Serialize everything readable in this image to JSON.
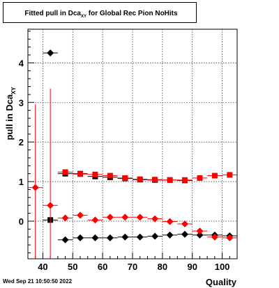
{
  "title": {
    "main": "Fitted pull in Dca",
    "sub": "XY",
    "rest": " for Global Rec Pion NoHits"
  },
  "timestamp": "Wed Sep 21 10:50:50 2022",
  "colors": {
    "black": "#000000",
    "red": "#ff0000"
  },
  "chart_data": {
    "type": "scatter",
    "xlabel": "Quality",
    "ylabel_main": "pull in Dca",
    "ylabel_sub": "XY",
    "xlim": [
      35,
      105
    ],
    "ylim": [
      -0.95,
      4.85
    ],
    "xticks": [
      40,
      50,
      60,
      70,
      80,
      90,
      100
    ],
    "yticks": [
      0,
      1,
      2,
      3,
      4
    ],
    "grid": true,
    "series": [
      {
        "color": "#000000",
        "marker": "diamond",
        "points": [
          {
            "x": 42.5,
            "y": 4.25,
            "xerr": 2.5
          },
          {
            "x": 47.5,
            "y": -0.47,
            "xerr": 2.5
          },
          {
            "x": 52.5,
            "y": -0.42,
            "xerr": 2.5
          },
          {
            "x": 57.5,
            "y": -0.42,
            "xerr": 2.5
          },
          {
            "x": 62.5,
            "y": -0.42,
            "xerr": 2.5
          },
          {
            "x": 67.5,
            "y": -0.4,
            "xerr": 2.5
          },
          {
            "x": 72.5,
            "y": -0.4,
            "xerr": 2.5
          },
          {
            "x": 77.5,
            "y": -0.38,
            "xerr": 2.5
          },
          {
            "x": 82.5,
            "y": -0.35,
            "xerr": 2.5
          },
          {
            "x": 87.5,
            "y": -0.33,
            "xerr": 2.5
          },
          {
            "x": 92.5,
            "y": -0.35,
            "xerr": 2.5
          },
          {
            "x": 97.5,
            "y": -0.35,
            "xerr": 2.5
          },
          {
            "x": 102.5,
            "y": -0.37,
            "xerr": 2.5
          }
        ]
      },
      {
        "color": "#000000",
        "marker": "square",
        "points": [
          {
            "x": 42.5,
            "y": 0.03,
            "xerr": 2.5
          },
          {
            "x": 47.5,
            "y": 1.2,
            "xerr": 2.5
          },
          {
            "x": 52.5,
            "y": 1.2,
            "xerr": 2.5
          },
          {
            "x": 57.5,
            "y": 1.13,
            "xerr": 2.5
          },
          {
            "x": 62.5,
            "y": 1.11,
            "xerr": 2.5
          },
          {
            "x": 67.5,
            "y": 1.08,
            "xerr": 2.5
          },
          {
            "x": 72.5,
            "y": 1.05,
            "xerr": 2.5
          },
          {
            "x": 77.5,
            "y": 1.04,
            "xerr": 2.5
          },
          {
            "x": 82.5,
            "y": 1.04,
            "xerr": 2.5
          },
          {
            "x": 87.5,
            "y": 1.03,
            "xerr": 2.5
          }
        ]
      },
      {
        "color": "#ff0000",
        "marker": "diamond",
        "points": [
          {
            "x": 37.5,
            "y": 0.85,
            "xerr": 2.5,
            "yerr": 2.1
          },
          {
            "x": 42.5,
            "y": 0.4,
            "xerr": 2.5,
            "yerr": 2.95
          },
          {
            "x": 47.5,
            "y": 0.08,
            "xerr": 2.5
          },
          {
            "x": 52.5,
            "y": 0.15,
            "xerr": 2.5
          },
          {
            "x": 57.5,
            "y": 0.03,
            "xerr": 2.5
          },
          {
            "x": 62.5,
            "y": 0.1,
            "xerr": 2.5
          },
          {
            "x": 67.5,
            "y": 0.1,
            "xerr": 2.5
          },
          {
            "x": 72.5,
            "y": 0.1,
            "xerr": 2.5
          },
          {
            "x": 77.5,
            "y": 0.06,
            "xerr": 2.5
          },
          {
            "x": 82.5,
            "y": -0.01,
            "xerr": 2.5
          },
          {
            "x": 87.5,
            "y": -0.07,
            "xerr": 2.5
          },
          {
            "x": 92.5,
            "y": -0.25,
            "xerr": 2.5
          },
          {
            "x": 97.5,
            "y": -0.4,
            "xerr": 2.5
          },
          {
            "x": 102.5,
            "y": -0.42,
            "xerr": 2.5
          }
        ]
      },
      {
        "color": "#ff0000",
        "marker": "square",
        "points": [
          {
            "x": 47.5,
            "y": 1.24,
            "xerr": 2.5
          },
          {
            "x": 52.5,
            "y": 1.19,
            "xerr": 2.5
          },
          {
            "x": 57.5,
            "y": 1.18,
            "xerr": 2.5
          },
          {
            "x": 62.5,
            "y": 1.15,
            "xerr": 2.5
          },
          {
            "x": 67.5,
            "y": 1.09,
            "xerr": 2.5
          },
          {
            "x": 72.5,
            "y": 1.06,
            "xerr": 2.5
          },
          {
            "x": 77.5,
            "y": 1.05,
            "xerr": 2.5
          },
          {
            "x": 82.5,
            "y": 1.04,
            "xerr": 2.5
          },
          {
            "x": 87.5,
            "y": 1.04,
            "xerr": 2.5
          },
          {
            "x": 92.5,
            "y": 1.09,
            "xerr": 2.5
          },
          {
            "x": 97.5,
            "y": 1.15,
            "xerr": 2.5
          },
          {
            "x": 102.5,
            "y": 1.17,
            "xerr": 2.5
          }
        ]
      }
    ]
  }
}
